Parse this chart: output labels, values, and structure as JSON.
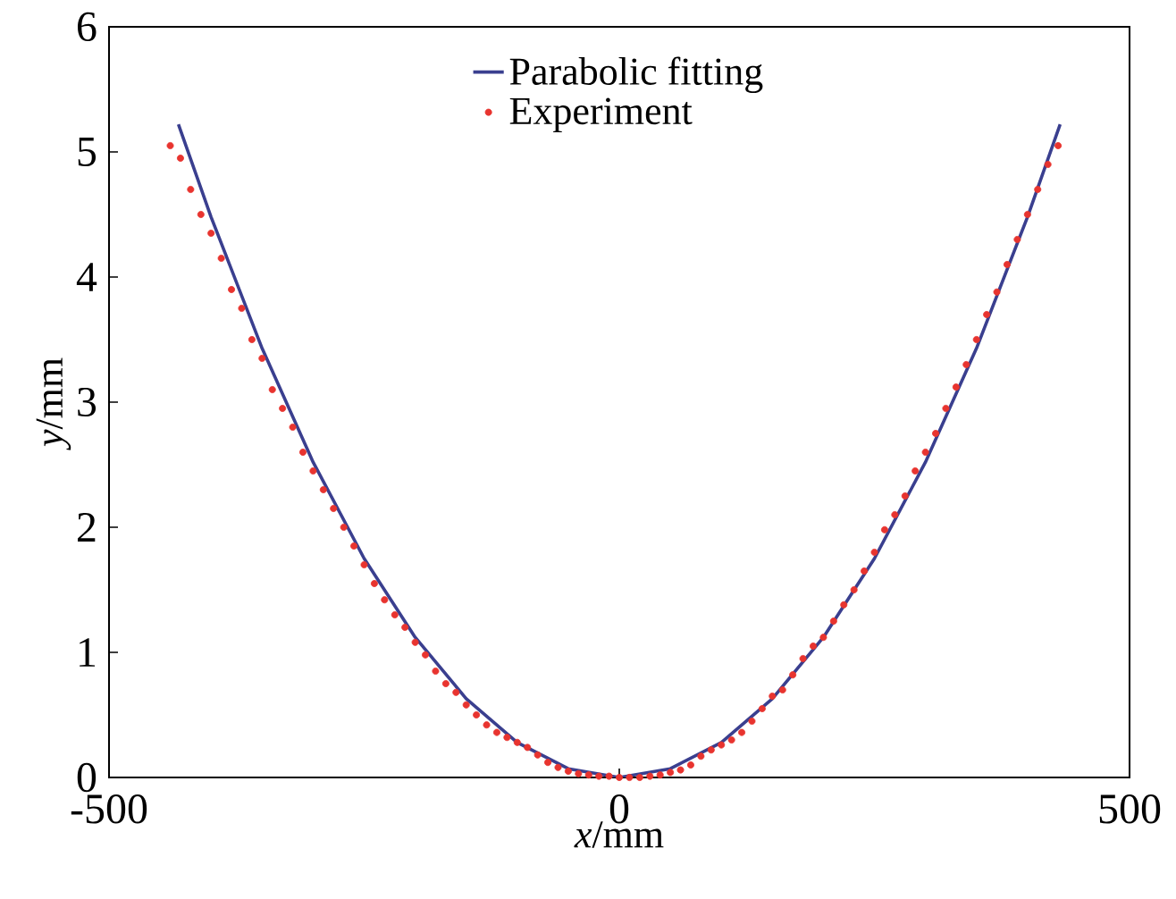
{
  "chart_data": {
    "type": "scatter",
    "xlabel": "*x*/mm",
    "ylabel": "*y*/mm",
    "xlim": [
      -500,
      500
    ],
    "xticks": [
      -500,
      0,
      500
    ],
    "ylim": [
      0,
      6
    ],
    "yticks": [
      0,
      1,
      2,
      3,
      4,
      5,
      6
    ],
    "legend": "top",
    "grid": false,
    "series": [
      {
        "name": "Parabolic fitting",
        "type": "line",
        "color": "#3a3f8f",
        "marker": "none",
        "line_style": "solid",
        "x": [
          -432,
          -400,
          -350,
          -300,
          -250,
          -200,
          -150,
          -100,
          -50,
          0,
          50,
          100,
          150,
          200,
          250,
          300,
          350,
          400,
          432
        ],
        "values": [
          5.22,
          4.48,
          3.43,
          2.52,
          1.75,
          1.12,
          0.63,
          0.28,
          0.07,
          0,
          0.07,
          0.28,
          0.63,
          1.12,
          1.75,
          2.52,
          3.43,
          4.48,
          5.22
        ]
      },
      {
        "name": "Experiment",
        "color": "#e8342f",
        "marker": "circle",
        "x": [
          -440,
          -430,
          -420,
          -410,
          -400,
          -390,
          -380,
          -370,
          -360,
          -350,
          -340,
          -330,
          -320,
          -310,
          -300,
          -290,
          -280,
          -270,
          -260,
          -250,
          -240,
          -230,
          -220,
          -210,
          -200,
          -190,
          -180,
          -170,
          -160,
          -150,
          -140,
          -130,
          -120,
          -110,
          -100,
          -90,
          -80,
          -70,
          -60,
          -50,
          -40,
          -30,
          -20,
          -10,
          0,
          10,
          20,
          30,
          40,
          50,
          60,
          70,
          80,
          90,
          100,
          110,
          120,
          130,
          140,
          150,
          160,
          170,
          180,
          190,
          200,
          210,
          220,
          230,
          240,
          250,
          260,
          270,
          280,
          290,
          300,
          310,
          320,
          330,
          340,
          350,
          360,
          370,
          380,
          390,
          400,
          410,
          420,
          430
        ],
        "values": [
          5.05,
          4.95,
          4.7,
          4.5,
          4.35,
          4.15,
          3.9,
          3.75,
          3.5,
          3.35,
          3.1,
          2.95,
          2.8,
          2.6,
          2.45,
          2.3,
          2.15,
          2.0,
          1.85,
          1.7,
          1.55,
          1.42,
          1.3,
          1.2,
          1.08,
          0.98,
          0.85,
          0.75,
          0.68,
          0.58,
          0.5,
          0.42,
          0.36,
          0.32,
          0.28,
          0.24,
          0.18,
          0.12,
          0.08,
          0.05,
          0.03,
          0.02,
          0.01,
          0.01,
          0.0,
          0.0,
          0.0,
          0.01,
          0.02,
          0.04,
          0.06,
          0.1,
          0.17,
          0.22,
          0.26,
          0.3,
          0.36,
          0.45,
          0.55,
          0.65,
          0.7,
          0.82,
          0.95,
          1.05,
          1.12,
          1.25,
          1.38,
          1.5,
          1.65,
          1.8,
          1.98,
          2.1,
          2.25,
          2.45,
          2.6,
          2.75,
          2.95,
          3.12,
          3.3,
          3.5,
          3.7,
          3.88,
          4.1,
          4.3,
          4.5,
          4.7,
          4.9,
          5.05
        ]
      }
    ]
  }
}
